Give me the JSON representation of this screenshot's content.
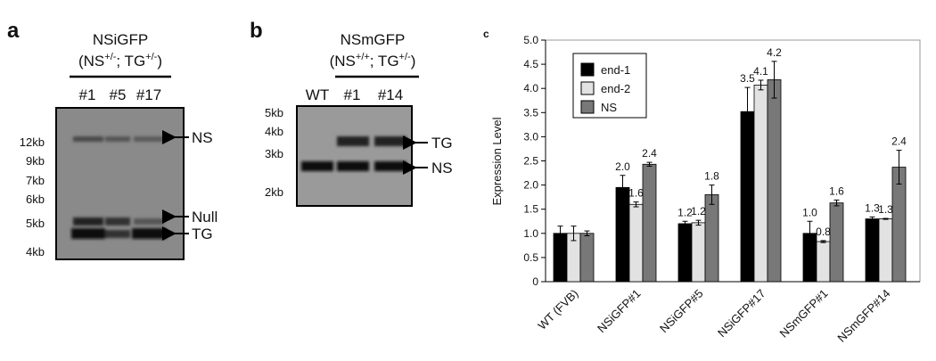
{
  "panel_a": {
    "letter": "a",
    "title": "NSiGFP",
    "subtitle": [
      "(NS",
      "+/-",
      "; TG",
      "+/-",
      ")"
    ],
    "lanes": [
      "#1",
      "#5",
      "#17"
    ],
    "markers": [
      "12kb",
      "9kb",
      "7kb",
      "6kb",
      "5kb",
      "4kb"
    ],
    "bands": [
      "NS",
      "Null",
      "TG"
    ]
  },
  "panel_b": {
    "letter": "b",
    "title": "NSmGFP",
    "subtitle": [
      "(NS",
      "+/+",
      "; TG",
      "+/-",
      ")"
    ],
    "lanes": [
      "WT",
      "#1",
      "#14"
    ],
    "markers": [
      "5kb",
      "4kb",
      "3kb",
      "2kb"
    ],
    "bands": [
      "TG",
      "NS"
    ]
  },
  "chart_data": {
    "type": "bar",
    "letter": "c",
    "y_label": "Expression Level",
    "categories": [
      "WT (FVB)",
      "NSiGFP#1",
      "NSiGFP#5",
      "NSiGFP#17",
      "NSmGFP#1",
      "NSmGFP#14"
    ],
    "series": [
      {
        "name": "end-1",
        "color": "#000000",
        "values": [
          1.0,
          1.95,
          1.2,
          3.52,
          1.0,
          1.3
        ],
        "errors": [
          0.15,
          0.25,
          0.05,
          0.5,
          0.25,
          0.04
        ],
        "value_labels": [
          null,
          "2.0",
          "1.2",
          "3.5",
          "1.0",
          "1.3"
        ]
      },
      {
        "name": "end-2",
        "color": "#e2e2e2",
        "values": [
          1.0,
          1.6,
          1.22,
          4.07,
          0.83,
          1.3
        ],
        "errors": [
          0.15,
          0.05,
          0.05,
          0.1,
          0.02,
          0.01
        ],
        "value_labels": [
          null,
          "1.6",
          "1.2",
          "4.1",
          "0.8",
          "1.3"
        ]
      },
      {
        "name": "NS",
        "color": "#787878",
        "values": [
          1.0,
          2.43,
          1.8,
          4.18,
          1.63,
          2.37
        ],
        "errors": [
          0.05,
          0.04,
          0.2,
          0.38,
          0.06,
          0.35
        ],
        "value_labels": [
          null,
          "2.4",
          "1.8",
          "4.2",
          "1.6",
          "2.4"
        ]
      }
    ],
    "ylim": [
      0,
      5
    ],
    "yticks": [
      0,
      0.5,
      {
        "value": 1,
        "label": "1.0"
      },
      1.5,
      {
        "value": 2,
        "label": "2.0"
      },
      2.5,
      {
        "value": 3,
        "label": "3.0"
      },
      3.5,
      {
        "value": 4,
        "label": "4.0"
      },
      4.5,
      {
        "value": 5,
        "label": "5.0"
      }
    ],
    "legend": "upper-left"
  }
}
